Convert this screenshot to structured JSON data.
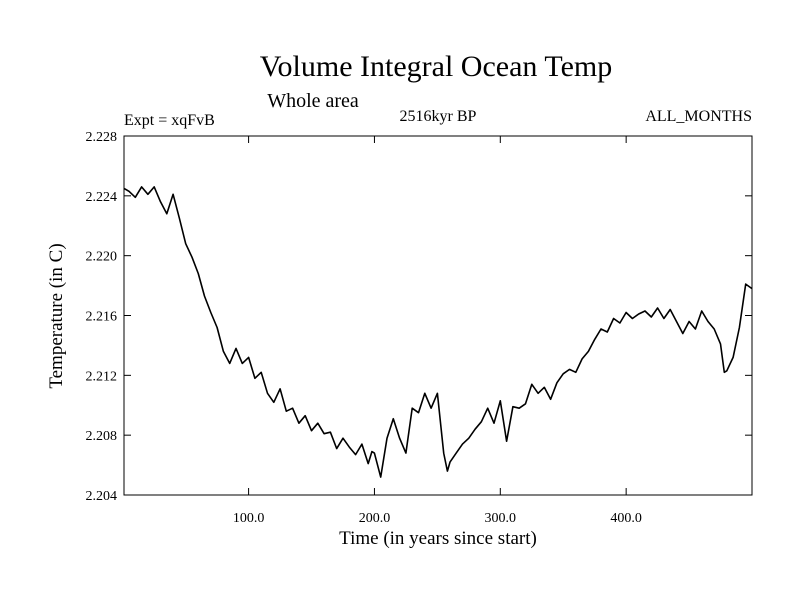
{
  "chart_data": {
    "type": "line",
    "title": "Volume Integral Ocean Temp",
    "subtitle": "Whole area",
    "experiment_label": "Expt = xqFvB",
    "period_label": "2516kyr BP",
    "months_label": "ALL_MONTHS",
    "xlabel": "Time (in years since start)",
    "ylabel": "Temperature (in C)",
    "xlim": [
      1,
      500
    ],
    "ylim": [
      2.204,
      2.228
    ],
    "xticks": [
      100,
      200,
      300,
      400
    ],
    "xtick_labels": [
      "100.0",
      "200.0",
      "300.0",
      "400.0"
    ],
    "yticks": [
      2.204,
      2.208,
      2.212,
      2.216,
      2.22,
      2.224,
      2.228
    ],
    "ytick_labels": [
      "2.204",
      "2.208",
      "2.212",
      "2.216",
      "2.220",
      "2.224",
      "2.228"
    ],
    "series": [
      {
        "name": "Volume integral ocean temperature",
        "x": [
          1,
          5,
          10,
          15,
          20,
          25,
          30,
          35,
          40,
          45,
          50,
          55,
          60,
          65,
          70,
          75,
          80,
          85,
          90,
          95,
          100,
          105,
          110,
          115,
          120,
          125,
          130,
          135,
          140,
          145,
          150,
          155,
          160,
          165,
          170,
          175,
          180,
          185,
          190,
          195,
          198,
          200,
          205,
          210,
          215,
          220,
          225,
          230,
          235,
          240,
          245,
          250,
          255,
          258,
          260,
          265,
          270,
          275,
          280,
          285,
          290,
          295,
          300,
          305,
          310,
          315,
          320,
          325,
          330,
          335,
          340,
          345,
          350,
          355,
          360,
          365,
          370,
          375,
          380,
          385,
          390,
          395,
          400,
          405,
          410,
          415,
          420,
          425,
          430,
          435,
          440,
          445,
          450,
          455,
          460,
          465,
          470,
          475,
          478,
          480,
          485,
          490,
          495,
          500
        ],
        "values": [
          2.2245,
          2.2243,
          2.2239,
          2.2246,
          2.2241,
          2.2246,
          2.2236,
          2.2228,
          2.2241,
          2.2225,
          2.2208,
          2.2199,
          2.2188,
          2.2173,
          2.2162,
          2.2152,
          2.2136,
          2.2128,
          2.2138,
          2.2128,
          2.2132,
          2.2118,
          2.2122,
          2.2108,
          2.2102,
          2.2111,
          2.2096,
          2.2098,
          2.2088,
          2.2093,
          2.2083,
          2.2088,
          2.2081,
          2.2082,
          2.2071,
          2.2078,
          2.2072,
          2.2067,
          2.2074,
          2.2061,
          2.2069,
          2.2068,
          2.2052,
          2.2078,
          2.2091,
          2.2078,
          2.2068,
          2.2098,
          2.2095,
          2.2108,
          2.2098,
          2.2108,
          2.2068,
          2.2056,
          2.2062,
          2.2068,
          2.2074,
          2.2078,
          2.2084,
          2.2089,
          2.2098,
          2.2088,
          2.2103,
          2.2076,
          2.2099,
          2.2098,
          2.2101,
          2.2114,
          2.2108,
          2.2112,
          2.2104,
          2.2115,
          2.2121,
          2.2124,
          2.2122,
          2.2131,
          2.2136,
          2.2144,
          2.2151,
          2.2149,
          2.2158,
          2.2155,
          2.2162,
          2.2158,
          2.2161,
          2.2163,
          2.2159,
          2.2165,
          2.2158,
          2.2164,
          2.2156,
          2.2148,
          2.2156,
          2.2151,
          2.2163,
          2.2156,
          2.2151,
          2.2141,
          2.2122,
          2.2123,
          2.2132,
          2.2152,
          2.2181,
          2.2178
        ]
      }
    ]
  }
}
